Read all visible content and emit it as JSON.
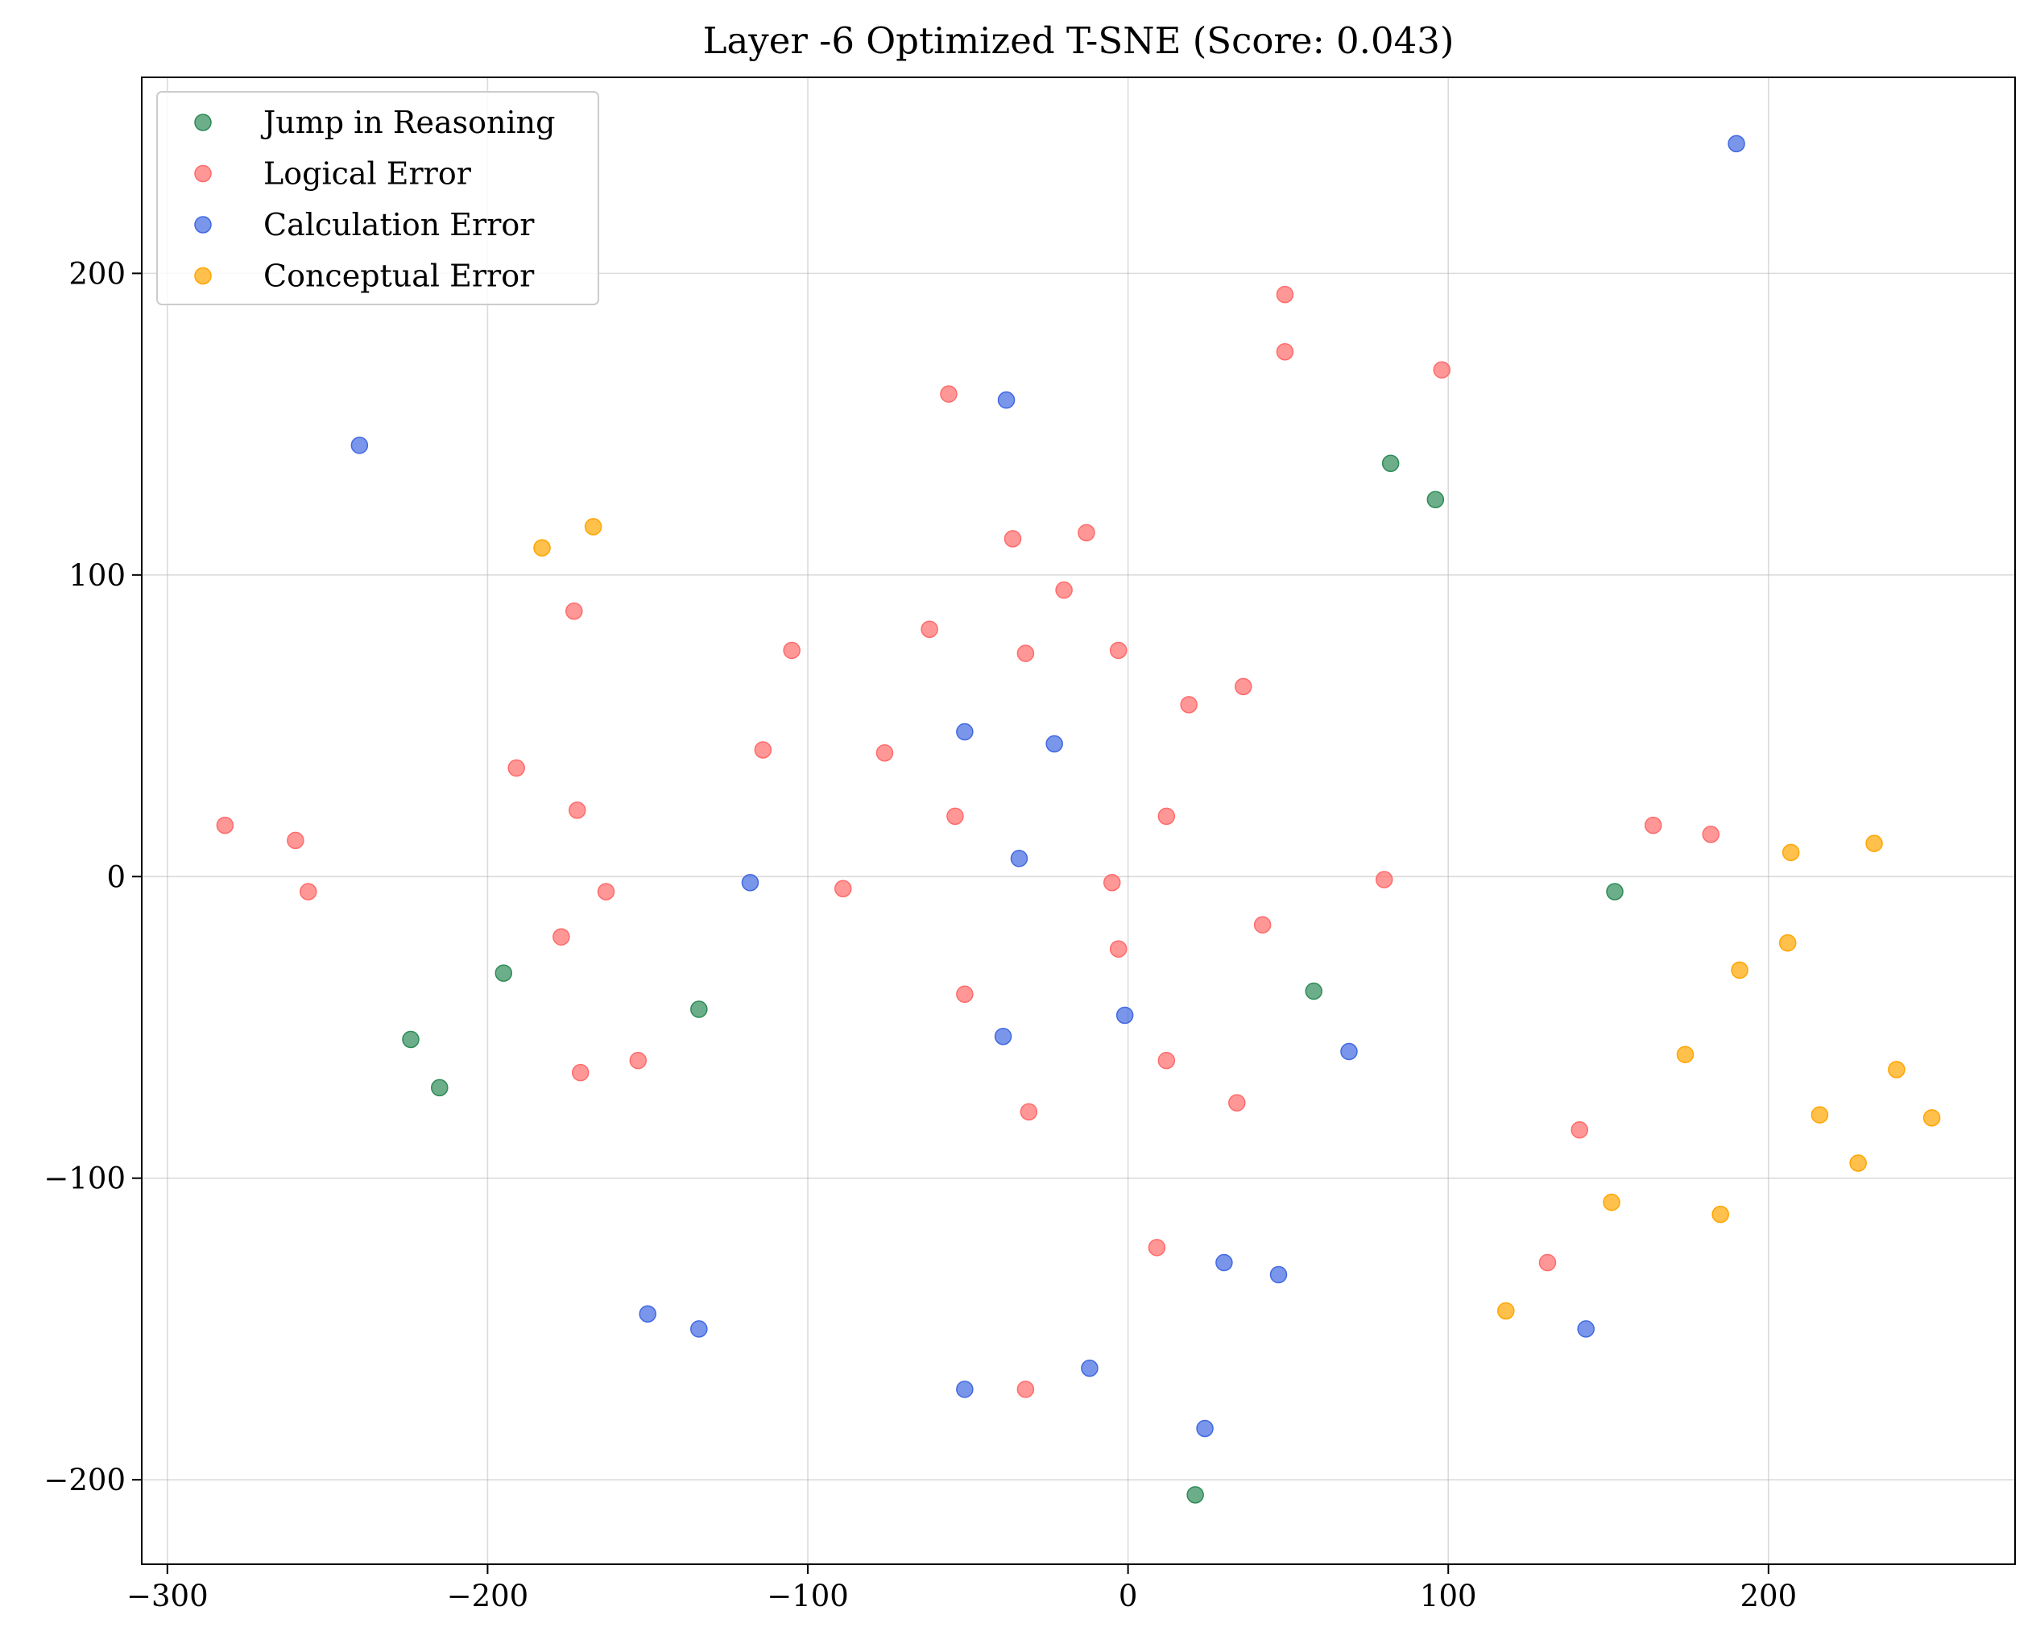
{
  "chart_data": {
    "type": "scatter",
    "title": "Layer -6 Optimized T-SNE (Score: 0.043)",
    "xlabel": "",
    "ylabel": "",
    "xlim": [
      -308,
      277
    ],
    "ylim": [
      -228,
      265
    ],
    "x_ticks": [
      -300,
      -200,
      -100,
      0,
      100,
      200
    ],
    "y_ticks": [
      -200,
      -100,
      0,
      100,
      200
    ],
    "x_tick_labels": [
      "−300",
      "−200",
      "−100",
      "0",
      "100",
      "200"
    ],
    "y_tick_labels": [
      "−200",
      "−100",
      "0",
      "100",
      "200"
    ],
    "grid": true,
    "legend_position": "top-left",
    "series": [
      {
        "name": "Jump in Reasoning",
        "color": "#2E8B57",
        "points": [
          [
            82,
            137
          ],
          [
            96,
            125
          ],
          [
            152,
            -5
          ],
          [
            58,
            -38
          ],
          [
            -195,
            -32
          ],
          [
            -134,
            -44
          ],
          [
            -224,
            -54
          ],
          [
            -215,
            -70
          ],
          [
            21,
            -205
          ]
        ]
      },
      {
        "name": "Logical Error",
        "color": "#FF6B6B",
        "points": [
          [
            49,
            193
          ],
          [
            49,
            174
          ],
          [
            98,
            168
          ],
          [
            -56,
            160
          ],
          [
            -36,
            112
          ],
          [
            -13,
            114
          ],
          [
            -20,
            95
          ],
          [
            -173,
            88
          ],
          [
            -105,
            75
          ],
          [
            -62,
            82
          ],
          [
            -32,
            74
          ],
          [
            -3,
            75
          ],
          [
            19,
            57
          ],
          [
            36,
            63
          ],
          [
            -114,
            42
          ],
          [
            -76,
            41
          ],
          [
            -191,
            36
          ],
          [
            -172,
            22
          ],
          [
            -54,
            20
          ],
          [
            12,
            20
          ],
          [
            -282,
            17
          ],
          [
            -260,
            12
          ],
          [
            -256,
            -5
          ],
          [
            -163,
            -5
          ],
          [
            -89,
            -4
          ],
          [
            -5,
            -2
          ],
          [
            80,
            -1
          ],
          [
            164,
            17
          ],
          [
            182,
            14
          ],
          [
            -177,
            -20
          ],
          [
            42,
            -16
          ],
          [
            -3,
            -24
          ],
          [
            -51,
            -39
          ],
          [
            -171,
            -65
          ],
          [
            -153,
            -61
          ],
          [
            12,
            -61
          ],
          [
            34,
            -75
          ],
          [
            -31,
            -78
          ],
          [
            141,
            -84
          ],
          [
            9,
            -123
          ],
          [
            131,
            -128
          ],
          [
            -32,
            -170
          ]
        ]
      },
      {
        "name": "Calculation Error",
        "color": "#4169E1",
        "points": [
          [
            190,
            243
          ],
          [
            -38,
            158
          ],
          [
            -240,
            143
          ],
          [
            -51,
            48
          ],
          [
            -23,
            44
          ],
          [
            -34,
            6
          ],
          [
            -118,
            -2
          ],
          [
            -39,
            -53
          ],
          [
            -1,
            -46
          ],
          [
            69,
            -58
          ],
          [
            30,
            -128
          ],
          [
            47,
            -132
          ],
          [
            143,
            -150
          ],
          [
            -150,
            -145
          ],
          [
            -134,
            -150
          ],
          [
            -12,
            -163
          ],
          [
            -51,
            -170
          ],
          [
            24,
            -183
          ]
        ]
      },
      {
        "name": "Conceptual Error",
        "color": "#FFA500",
        "points": [
          [
            -183,
            109
          ],
          [
            -167,
            116
          ],
          [
            207,
            8
          ],
          [
            233,
            11
          ],
          [
            206,
            -22
          ],
          [
            191,
            -31
          ],
          [
            174,
            -59
          ],
          [
            240,
            -64
          ],
          [
            216,
            -79
          ],
          [
            251,
            -80
          ],
          [
            228,
            -95
          ],
          [
            151,
            -108
          ],
          [
            185,
            -112
          ],
          [
            118,
            -144
          ]
        ]
      }
    ]
  }
}
